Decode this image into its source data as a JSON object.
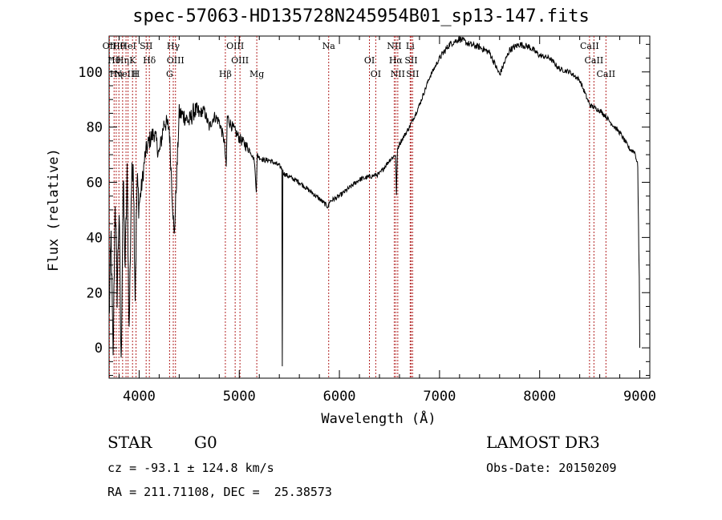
{
  "title": "spec-57063-HD135728N245954B01_sp13-147.fits",
  "chart_data": {
    "type": "line",
    "title": "spec-57063-HD135728N245954B01_sp13-147.fits",
    "xlabel": "Wavelength (Å)",
    "ylabel": "Flux (relative)",
    "xlim": [
      3700,
      9100
    ],
    "ylim": [
      -11,
      113
    ],
    "xticks": [
      4000,
      5000,
      6000,
      7000,
      8000,
      9000
    ],
    "yticks": [
      0,
      20,
      40,
      60,
      80,
      100
    ],
    "xtick_labels": [
      "4000",
      "5000",
      "6000",
      "7000",
      "8000",
      "9000"
    ],
    "ytick_labels": [
      "0",
      "20",
      "40",
      "60",
      "80",
      "100"
    ],
    "series": [
      {
        "name": "flux",
        "x": [
          3700,
          3720,
          3740,
          3760,
          3780,
          3800,
          3820,
          3840,
          3860,
          3880,
          3900,
          3920,
          3940,
          3960,
          3980,
          4000,
          4030,
          4060,
          4100,
          4150,
          4200,
          4250,
          4300,
          4350,
          4400,
          4450,
          4500,
          4550,
          4600,
          4650,
          4700,
          4750,
          4800,
          4850,
          4870,
          4880,
          4900,
          4950,
          5000,
          5050,
          5100,
          5150,
          5170,
          5180,
          5200,
          5250,
          5300,
          5350,
          5400,
          5425,
          5430,
          5435,
          5450,
          5500,
          5600,
          5700,
          5800,
          5890,
          5900,
          6000,
          6100,
          6200,
          6300,
          6400,
          6500,
          6560,
          6570,
          6580,
          6600,
          6700,
          6800,
          6900,
          7000,
          7100,
          7200,
          7300,
          7400,
          7500,
          7600,
          7700,
          7800,
          7900,
          8000,
          8100,
          8200,
          8300,
          8400,
          8500,
          8550,
          8600,
          8660,
          8700,
          8800,
          8900,
          8950,
          8980,
          8990,
          8995,
          9000
        ],
        "y": [
          10,
          40,
          -6,
          55,
          20,
          50,
          -8,
          60,
          30,
          62,
          5,
          55,
          70,
          20,
          60,
          52,
          60,
          70,
          75,
          78,
          70,
          82,
          80,
          40,
          85,
          84,
          82,
          86,
          85,
          86,
          80,
          84,
          82,
          75,
          65,
          84,
          82,
          79,
          76,
          74,
          72,
          68,
          57,
          70,
          69,
          68,
          68,
          67,
          66,
          65,
          -6,
          64,
          63,
          62,
          60,
          57,
          54,
          51,
          53,
          55,
          58,
          61,
          62,
          63,
          68,
          70,
          56,
          72,
          74,
          80,
          88,
          98,
          105,
          110,
          112,
          110,
          109,
          107,
          99,
          108,
          110,
          109,
          106,
          105,
          101,
          100,
          97,
          88,
          87,
          86,
          84,
          82,
          78,
          72,
          71,
          66,
          35,
          25,
          0
        ]
      }
    ],
    "lines": [
      {
        "x": 3704,
        "labels": [
          "OII"
        ]
      },
      {
        "x": 3750,
        "labels": [
          "Hθ"
        ]
      },
      {
        "x": 3771,
        "labels": [
          "Hη"
        ]
      },
      {
        "x": 3798,
        "labels": [
          "Hθ"
        ]
      },
      {
        "x": 3835,
        "labels": [
          "Hη"
        ]
      },
      {
        "x": 3869,
        "labels": [
          "NeIII"
        ]
      },
      {
        "x": 3889,
        "labels": [
          "HeI"
        ]
      },
      {
        "x": 3934,
        "labels": [
          "K"
        ]
      },
      {
        "x": 3969,
        "labels": [
          "H"
        ]
      },
      {
        "x": 4070,
        "labels": [
          "SII"
        ]
      },
      {
        "x": 4102,
        "labels": [
          "Hδ"
        ]
      },
      {
        "x": 4304,
        "labels": [
          "G"
        ]
      },
      {
        "x": 4341,
        "labels": [
          "Hγ"
        ]
      },
      {
        "x": 4363,
        "labels": [
          "OIII"
        ]
      },
      {
        "x": 4861,
        "labels": [
          "Hβ"
        ]
      },
      {
        "x": 4959,
        "labels": [
          "OIII"
        ]
      },
      {
        "x": 5007,
        "labels": [
          "OIII"
        ]
      },
      {
        "x": 5175,
        "labels": [
          "Mg"
        ]
      },
      {
        "x": 5893,
        "labels": [
          "Na"
        ]
      },
      {
        "x": 6300,
        "labels": [
          "OI"
        ]
      },
      {
        "x": 6363,
        "labels": [
          "OI"
        ]
      },
      {
        "x": 6548,
        "labels": [
          "NII"
        ]
      },
      {
        "x": 6563,
        "labels": [
          "Hα"
        ]
      },
      {
        "x": 6583,
        "labels": [
          "NII"
        ]
      },
      {
        "x": 6707,
        "labels": [
          "Li"
        ]
      },
      {
        "x": 6716,
        "labels": [
          "SII"
        ]
      },
      {
        "x": 6731,
        "labels": [
          "SII"
        ]
      },
      {
        "x": 8498,
        "labels": [
          "CaII"
        ]
      },
      {
        "x": 8542,
        "labels": [
          "CaII"
        ]
      },
      {
        "x": 8662,
        "labels": [
          "CaII"
        ]
      }
    ],
    "line_labels": {
      "top_row": [
        "Hθ",
        "K",
        "Hδ",
        "OIII",
        "OIII",
        "OI",
        "Hα",
        "SII",
        "CaII"
      ],
      "mid_row": [
        "OII",
        "HeI",
        "SII",
        "Hγ",
        "OIII",
        "Na",
        "NII",
        "Li",
        "CaII"
      ],
      "bottom_row": [
        "NeIII",
        "Hη",
        "H",
        "G",
        "Hβ",
        "Mg",
        "OI",
        "NII",
        "SII",
        "CaII"
      ]
    },
    "line_color": "#b22222"
  },
  "info": {
    "class": "STAR",
    "subclass": "G0",
    "survey": "LAMOST DR3",
    "cz": "cz = -93.1 ± 124.8 km/s",
    "obs_date": "Obs-Date: 20150209",
    "coords": "RA = 211.71108, DEC =  25.38573"
  }
}
